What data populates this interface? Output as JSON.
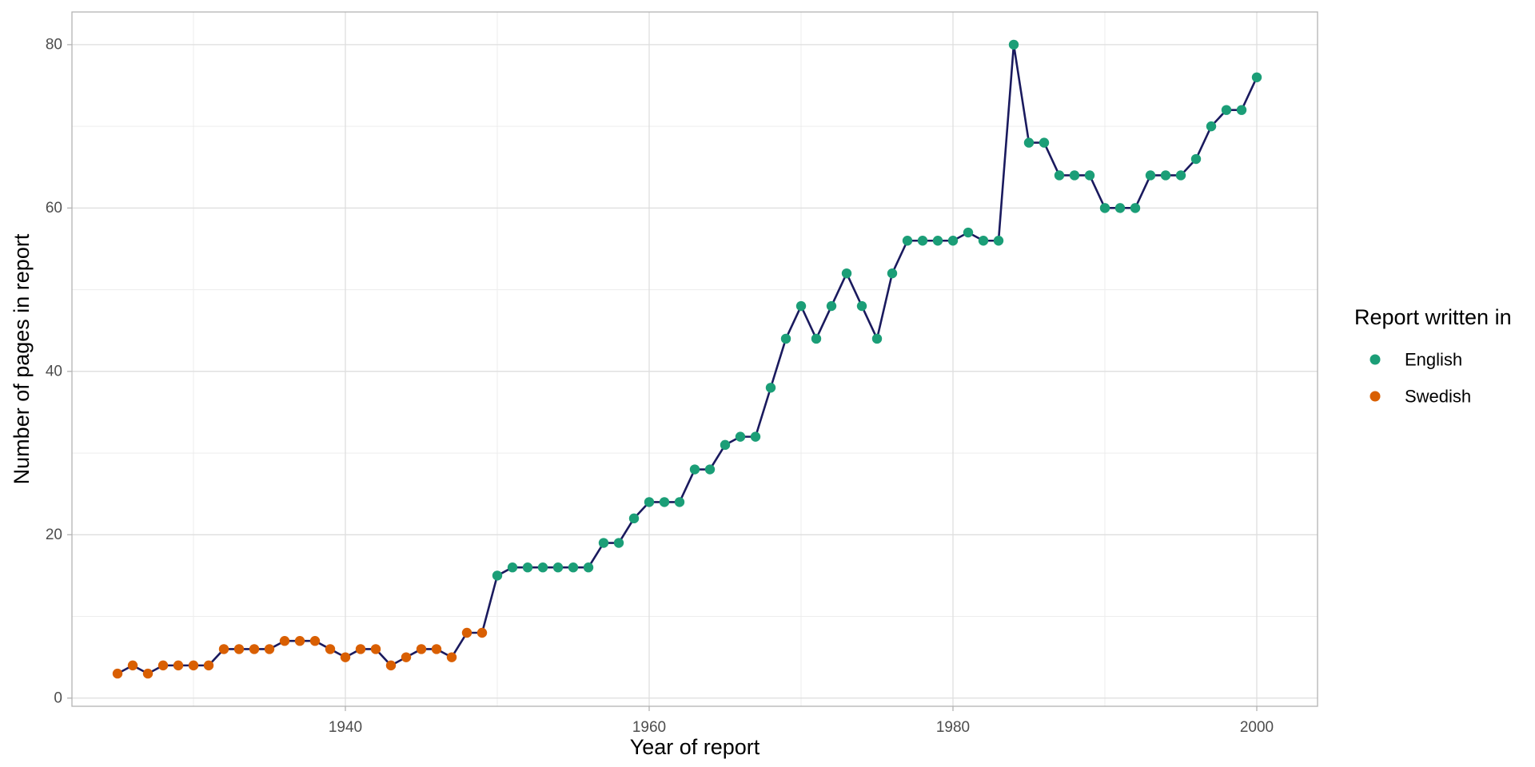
{
  "chart_data": {
    "type": "line",
    "xlabel": "Year of report",
    "ylabel": "Number of pages in report",
    "xlim": [
      1922,
      2004
    ],
    "ylim": [
      -1,
      84
    ],
    "x_ticks": [
      1940,
      1960,
      1980,
      2000
    ],
    "y_ticks": [
      0,
      20,
      40,
      60,
      80
    ],
    "grid": true,
    "legend_placement": "right",
    "legend": {
      "title": "Report written in",
      "entries": [
        {
          "label": "English",
          "color": "#1b9e77"
        },
        {
          "label": "Swedish",
          "color": "#d95f02"
        }
      ]
    },
    "line_color": "#1a1a5e",
    "series": [
      {
        "name": "Swedish",
        "color": "#d95f02",
        "x": [
          1925,
          1926,
          1927,
          1928,
          1929,
          1930,
          1931,
          1932,
          1933,
          1934,
          1935,
          1936,
          1937,
          1938,
          1939,
          1940,
          1941,
          1942,
          1943,
          1944,
          1945,
          1946,
          1947,
          1948,
          1949
        ],
        "y": [
          3,
          4,
          3,
          4,
          4,
          4,
          4,
          6,
          6,
          6,
          6,
          7,
          7,
          7,
          6,
          5,
          6,
          6,
          4,
          5,
          6,
          6,
          5,
          8,
          8
        ]
      },
      {
        "name": "English",
        "color": "#1b9e77",
        "x": [
          1950,
          1951,
          1952,
          1953,
          1954,
          1955,
          1956,
          1957,
          1958,
          1959,
          1960,
          1961,
          1962,
          1963,
          1964,
          1965,
          1966,
          1967,
          1968,
          1969,
          1970,
          1971,
          1972,
          1973,
          1974,
          1975,
          1976,
          1977,
          1978,
          1979,
          1980,
          1981,
          1982,
          1983,
          1984,
          1985,
          1986,
          1987,
          1988,
          1989,
          1990,
          1991,
          1992,
          1993,
          1994,
          1995,
          1996,
          1997,
          1998,
          1999,
          2000
        ],
        "y": [
          15,
          16,
          16,
          16,
          16,
          16,
          16,
          19,
          19,
          22,
          24,
          24,
          24,
          28,
          28,
          31,
          32,
          32,
          38,
          44,
          48,
          44,
          48,
          52,
          48,
          44,
          52,
          56,
          56,
          56,
          56,
          57,
          56,
          56,
          80,
          68,
          68,
          64,
          64,
          64,
          60,
          60,
          60,
          64,
          64,
          64,
          66,
          70,
          72,
          72,
          76
        ]
      }
    ]
  }
}
